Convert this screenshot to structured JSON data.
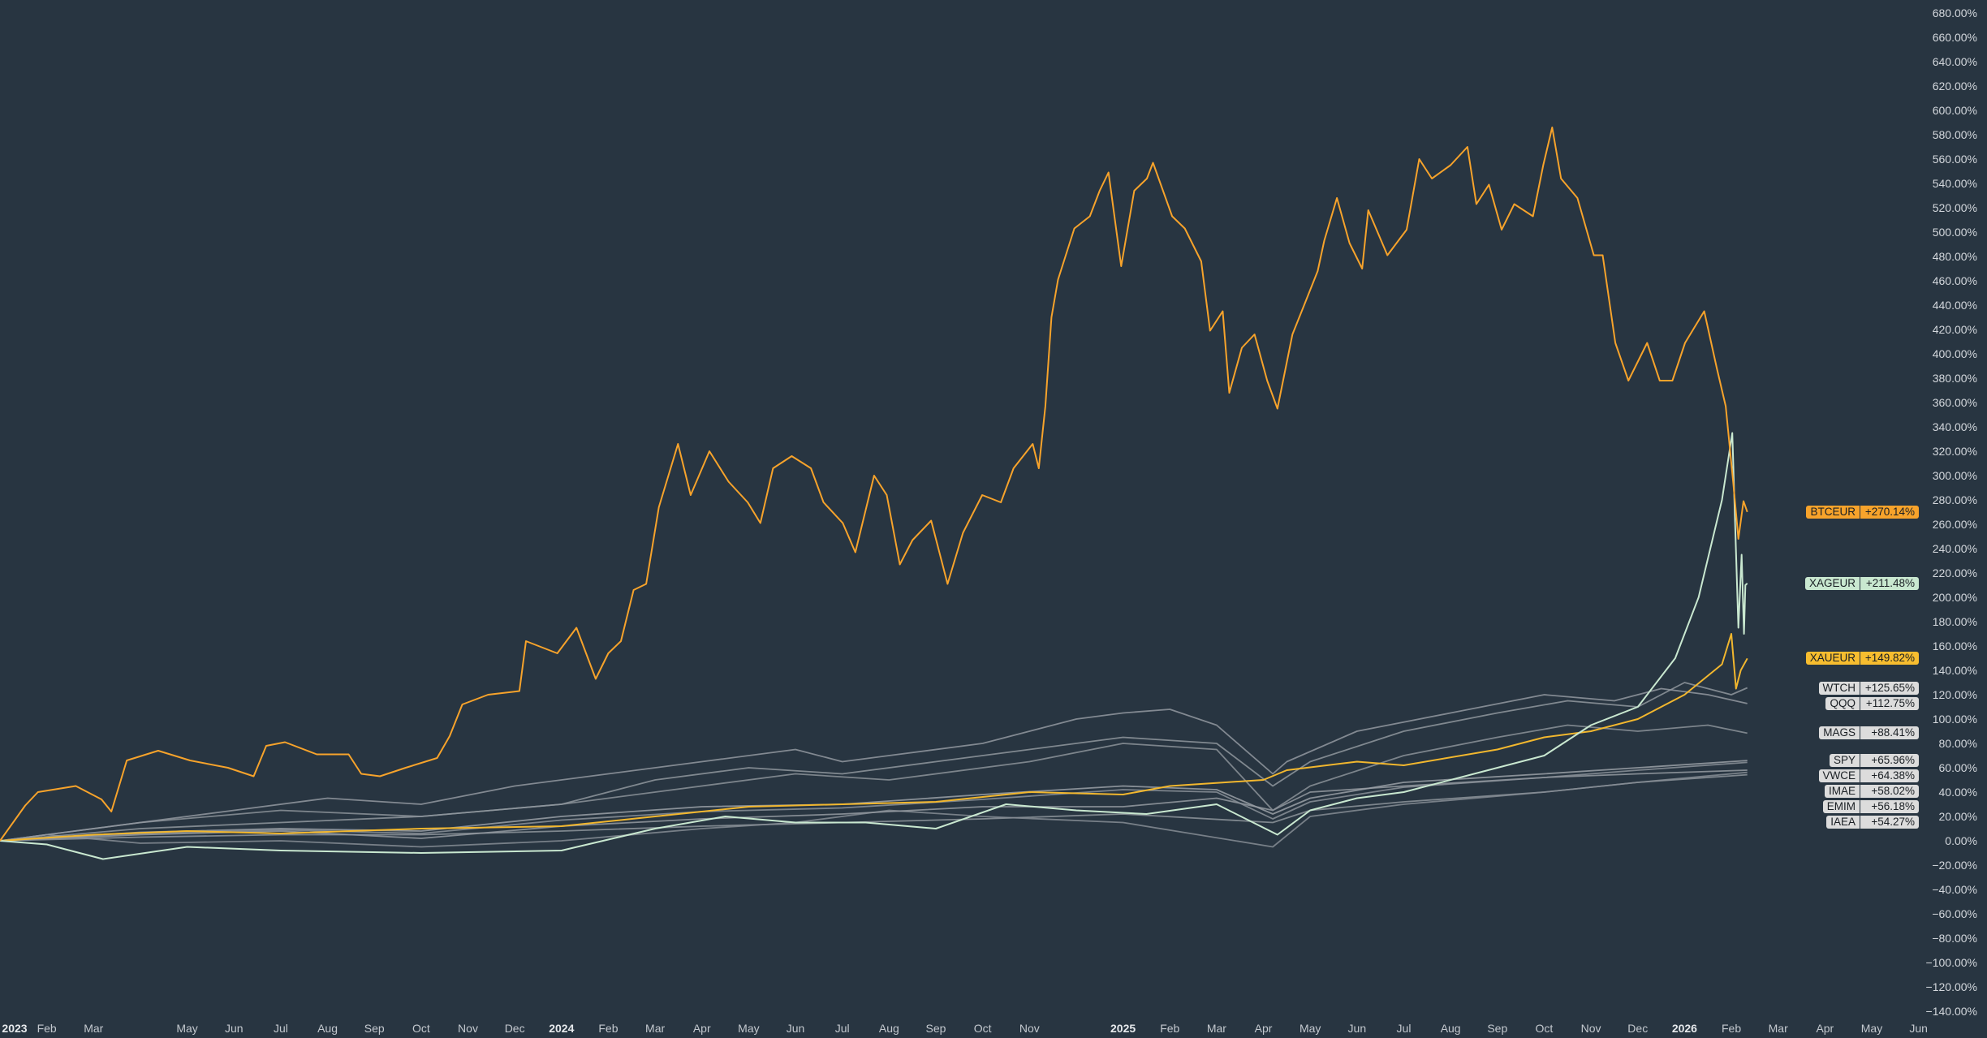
{
  "chart_data": {
    "type": "line",
    "title": "",
    "xlabel": "",
    "ylabel": "",
    "x_units": "months since Jan 2023",
    "xlim": [
      0,
      42.3
    ],
    "ylim": [
      -140,
      680
    ],
    "y_ticks": [
      "680.00%",
      "660.00%",
      "640.00%",
      "620.00%",
      "600.00%",
      "580.00%",
      "560.00%",
      "540.00%",
      "520.00%",
      "500.00%",
      "480.00%",
      "460.00%",
      "440.00%",
      "420.00%",
      "400.00%",
      "380.00%",
      "360.00%",
      "340.00%",
      "320.00%",
      "300.00%",
      "280.00%",
      "260.00%",
      "240.00%",
      "220.00%",
      "200.00%",
      "180.00%",
      "160.00%",
      "140.00%",
      "120.00%",
      "100.00%",
      "80.00%",
      "60.00%",
      "40.00%",
      "20.00%",
      "0.00%",
      "−20.00%",
      "−40.00%",
      "−60.00%",
      "−80.00%",
      "−100.00%",
      "−120.00%",
      "−140.00%"
    ],
    "x_ticks": [
      {
        "t": 0,
        "label": "2023",
        "year": true
      },
      {
        "t": 1,
        "label": "Feb"
      },
      {
        "t": 2,
        "label": "Mar"
      },
      {
        "t": 4,
        "label": "May"
      },
      {
        "t": 5,
        "label": "Jun"
      },
      {
        "t": 6,
        "label": "Jul"
      },
      {
        "t": 7,
        "label": "Aug"
      },
      {
        "t": 8,
        "label": "Sep"
      },
      {
        "t": 9,
        "label": "Oct"
      },
      {
        "t": 10,
        "label": "Nov"
      },
      {
        "t": 11,
        "label": "Dec"
      },
      {
        "t": 12,
        "label": "2024",
        "year": true
      },
      {
        "t": 13,
        "label": "Feb"
      },
      {
        "t": 14,
        "label": "Mar"
      },
      {
        "t": 15,
        "label": "Apr"
      },
      {
        "t": 16,
        "label": "May"
      },
      {
        "t": 17,
        "label": "Jun"
      },
      {
        "t": 18,
        "label": "Jul"
      },
      {
        "t": 19,
        "label": "Aug"
      },
      {
        "t": 20,
        "label": "Sep"
      },
      {
        "t": 21,
        "label": "Oct"
      },
      {
        "t": 22,
        "label": "Nov"
      },
      {
        "t": 24,
        "label": "2025",
        "year": true
      },
      {
        "t": 25,
        "label": "Feb"
      },
      {
        "t": 26,
        "label": "Mar"
      },
      {
        "t": 27,
        "label": "Apr"
      },
      {
        "t": 28,
        "label": "May"
      },
      {
        "t": 29,
        "label": "Jun"
      },
      {
        "t": 30,
        "label": "Jul"
      },
      {
        "t": 31,
        "label": "Aug"
      },
      {
        "t": 32,
        "label": "Sep"
      },
      {
        "t": 33,
        "label": "Oct"
      },
      {
        "t": 34,
        "label": "Nov"
      },
      {
        "t": 35,
        "label": "Dec"
      },
      {
        "t": 36,
        "label": "2026",
        "year": true
      },
      {
        "t": 37,
        "label": "Feb"
      },
      {
        "t": 38,
        "label": "Mar"
      },
      {
        "t": 39,
        "label": "Apr"
      },
      {
        "t": 40,
        "label": "May"
      },
      {
        "t": 41,
        "label": "Jun"
      }
    ],
    "series": [
      {
        "name": "IAEA",
        "last": "+54.27%",
        "color": "#8d949b",
        "badge": "#dcdcdc",
        "t": [
          0,
          3,
          6,
          9,
          12,
          15,
          18,
          21,
          24,
          27.2,
          28,
          30,
          33,
          35,
          37.34
        ],
        "v": [
          0,
          3,
          5,
          5,
          8,
          12,
          15,
          18,
          22,
          15,
          25,
          32,
          40,
          48,
          54.27
        ]
      },
      {
        "name": "EMIM",
        "last": "+56.18%",
        "color": "#858c94",
        "badge": "#dcdcdc",
        "t": [
          0,
          1,
          3,
          6,
          9,
          12,
          15,
          17,
          19,
          21,
          24,
          27.2,
          28,
          30,
          33,
          35,
          37.34
        ],
        "v": [
          0,
          5,
          -2,
          0,
          -5,
          0,
          10,
          15,
          25,
          20,
          15,
          -5,
          20,
          30,
          40,
          48,
          56.18
        ]
      },
      {
        "name": "IMAE",
        "last": "+58.02%",
        "color": "#949aa1",
        "badge": "#dcdcdc",
        "t": [
          0,
          3,
          6,
          9,
          12,
          15,
          18,
          21,
          24,
          26,
          27.2,
          28,
          30,
          33,
          35,
          37.34
        ],
        "v": [
          0,
          5,
          8,
          2,
          12,
          18,
          22,
          28,
          28,
          35,
          25,
          40,
          45,
          52,
          55,
          58.02
        ]
      },
      {
        "name": "VWCE",
        "last": "+64.38%",
        "color": "#8a9199",
        "badge": "#dcdcdc",
        "t": [
          0,
          3,
          6,
          9,
          12,
          15,
          18,
          21,
          24,
          26,
          27.2,
          28,
          30,
          33,
          35,
          37.34
        ],
        "v": [
          0,
          6,
          9,
          6,
          17,
          24,
          27,
          34,
          42,
          40,
          18,
          32,
          44,
          52,
          58,
          64.38
        ]
      },
      {
        "name": "SPY",
        "last": "+65.96%",
        "color": "#9aa0a7",
        "badge": "#dcdcdc",
        "t": [
          0,
          3,
          6,
          9,
          12,
          15,
          18,
          21,
          24,
          26,
          27.2,
          28,
          30,
          33,
          35,
          37.34
        ],
        "v": [
          0,
          7,
          10,
          8,
          20,
          28,
          30,
          38,
          45,
          42,
          22,
          35,
          48,
          55,
          60,
          65.96
        ]
      },
      {
        "name": "MAGS",
        "last": "+88.41%",
        "color": "#8b9299",
        "badge": "#dcdcdc",
        "t": [
          0,
          3,
          6,
          9,
          12,
          14,
          17,
          19,
          22,
          24,
          26,
          27.2,
          28,
          30,
          32,
          33.5,
          35,
          36.5,
          37.34
        ],
        "v": [
          0,
          15,
          25,
          20,
          30,
          40,
          55,
          50,
          65,
          80,
          75,
          25,
          45,
          70,
          85,
          95,
          90,
          95,
          88.41
        ]
      },
      {
        "name": "QQQ",
        "last": "+112.75%",
        "color": "#9298a0",
        "badge": "#dcdcdc",
        "t": [
          0,
          2,
          5,
          7,
          9,
          11,
          13,
          15,
          17,
          18,
          19,
          21,
          23,
          24,
          25,
          26,
          27.2,
          27.5,
          29,
          31,
          33,
          34.5,
          35.5,
          36.5,
          37.34
        ],
        "v": [
          0,
          10,
          25,
          35,
          30,
          45,
          55,
          65,
          75,
          65,
          70,
          80,
          100,
          105,
          108,
          95,
          55,
          65,
          90,
          105,
          120,
          115,
          125,
          120,
          112.75
        ]
      },
      {
        "name": "WTCH",
        "last": "+125.65%",
        "color": "#8f969d",
        "badge": "#dcdcdc",
        "t": [
          0,
          3,
          6,
          9,
          12,
          14,
          16,
          18,
          20,
          22,
          24,
          26,
          27.2,
          28,
          30,
          32,
          33.5,
          35,
          36,
          37,
          37.34
        ],
        "v": [
          0,
          10,
          15,
          20,
          30,
          50,
          60,
          55,
          65,
          75,
          85,
          80,
          45,
          65,
          90,
          105,
          115,
          110,
          130,
          120,
          125.65
        ]
      },
      {
        "name": "XAUEUR",
        "last": "+149.82%",
        "color": "#f2b72e",
        "badge": "#f7bd2f",
        "t": [
          0,
          2,
          4,
          6,
          9,
          12,
          14,
          16,
          18,
          20,
          22,
          24,
          25,
          27,
          27.5,
          29,
          30,
          32,
          33,
          34,
          35,
          36,
          36.8,
          37,
          37.1,
          37.2,
          37.34
        ],
        "v": [
          0,
          5,
          8,
          6,
          10,
          12,
          20,
          28,
          30,
          32,
          40,
          38,
          45,
          50,
          58,
          65,
          62,
          75,
          85,
          90,
          100,
          120,
          145,
          170,
          125,
          140,
          149.82
        ]
      },
      {
        "name": "XAGEUR",
        "last": "+211.48%",
        "color": "#c9e8d0",
        "badge": "#c9e8d0",
        "t": [
          0,
          1,
          2.2,
          4,
          6,
          9,
          12,
          14,
          15.5,
          17,
          18.5,
          20,
          21.5,
          23,
          24.5,
          26,
          27.3,
          28,
          29,
          30,
          31.5,
          33,
          34,
          35,
          35.8,
          36.3,
          36.8,
          37.02,
          37.08,
          37.15,
          37.22,
          37.27,
          37.3,
          37.34
        ],
        "v": [
          0,
          -3,
          -15,
          -5,
          -8,
          -10,
          -8,
          10,
          20,
          15,
          15,
          10,
          30,
          25,
          22,
          30,
          5,
          25,
          35,
          40,
          55,
          70,
          95,
          110,
          150,
          200,
          280,
          335,
          260,
          175,
          235,
          170,
          210,
          211.48
        ]
      },
      {
        "name": "BTCEUR",
        "last": "+270.14%",
        "color": "#f7a32b",
        "badge": "#f7a32b",
        "t": [
          0,
          0.54,
          0.81,
          1.62,
          2.17,
          2.38,
          2.71,
          3.38,
          4.06,
          4.87,
          5.42,
          5.69,
          6.09,
          6.77,
          7.45,
          7.72,
          8.12,
          8.67,
          9.34,
          9.61,
          9.88,
          10.43,
          11.1,
          11.24,
          11.91,
          12.32,
          12.73,
          13.0,
          13.27,
          13.54,
          13.81,
          14.08,
          14.49,
          14.76,
          15.16,
          15.57,
          15.98,
          16.25,
          16.52,
          16.92,
          17.33,
          17.6,
          18.01,
          18.28,
          18.68,
          18.95,
          19.23,
          19.5,
          19.9,
          20.25,
          20.58,
          20.99,
          21.39,
          21.66,
          22.07,
          22.2,
          22.34,
          22.47,
          22.61,
          22.96,
          23.29,
          23.5,
          23.69,
          23.96,
          24.24,
          24.51,
          24.64,
          25.05,
          25.32,
          25.67,
          25.86,
          26.13,
          26.27,
          26.54,
          26.81,
          27.08,
          27.3,
          27.62,
          27.89,
          28.16,
          28.3,
          28.57,
          28.84,
          29.11,
          29.24,
          29.65,
          30.06,
          30.33,
          30.6,
          31.0,
          31.36,
          31.55,
          31.82,
          32.09,
          32.36,
          32.76,
          32.98,
          33.17,
          33.36,
          33.71,
          34.06,
          34.25,
          34.52,
          34.8,
          35.2,
          35.47,
          35.74,
          36.01,
          36.42,
          36.69,
          36.88,
          37.04,
          37.15,
          37.26,
          37.34
        ],
        "v": [
          0,
          29,
          40,
          45,
          34,
          24,
          66,
          74,
          66,
          60,
          53,
          78,
          81,
          71,
          71,
          55,
          53,
          60,
          68,
          86,
          112,
          120,
          123,
          164,
          154,
          175,
          133,
          154,
          164,
          206,
          211,
          274,
          326,
          284,
          320,
          295,
          278,
          261,
          306,
          316,
          306,
          278,
          261,
          237,
          300,
          284,
          227,
          247,
          263,
          211,
          253,
          284,
          278,
          306,
          326,
          306,
          357,
          430,
          461,
          503,
          513,
          534,
          549,
          472,
          534,
          544,
          557,
          513,
          503,
          476,
          419,
          435,
          368,
          405,
          416,
          378,
          355,
          416,
          442,
          468,
          493,
          528,
          491,
          470,
          518,
          481,
          502,
          560,
          544,
          555,
          570,
          523,
          539,
          502,
          523,
          513,
          555,
          586,
          544,
          528,
          481,
          481,
          409,
          378,
          409,
          378,
          378,
          409,
          435,
          388,
          357,
          294,
          248,
          279,
          270.14
        ]
      }
    ]
  }
}
